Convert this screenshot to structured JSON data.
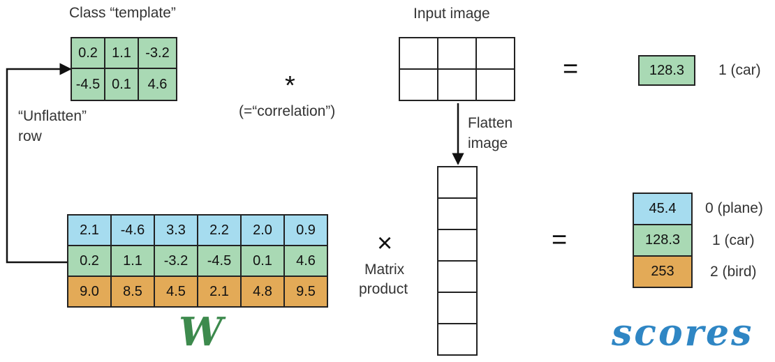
{
  "colors": {
    "blue": "#a6dcef",
    "green": "#a9d9b4",
    "orange": "#e3aa57",
    "w_label": "#3d8a4d",
    "scores_label": "#2f86c4"
  },
  "template_section": {
    "title": "Class “template”",
    "rows": [
      [
        "0.2",
        "1.1",
        "-3.2"
      ],
      [
        "-4.5",
        "0.1",
        "4.6"
      ]
    ]
  },
  "unflatten": {
    "line1": "“Unflatten”",
    "line2": "row"
  },
  "correlation": {
    "symbol": "*",
    "text": "(=“correlation”)"
  },
  "input_image": {
    "title": "Input image"
  },
  "flatten": {
    "line1": "Flatten",
    "line2": "image"
  },
  "top_result": {
    "equals": "=",
    "score": "128.3",
    "label": "1 (car)"
  },
  "weights": {
    "rows": [
      {
        "color": "blue",
        "values": [
          "2.1",
          "-4.6",
          "3.3",
          "2.2",
          "2.0",
          "0.9"
        ]
      },
      {
        "color": "green",
        "values": [
          "0.2",
          "1.1",
          "-3.2",
          "-4.5",
          "0.1",
          "4.6"
        ]
      },
      {
        "color": "orange",
        "values": [
          "9.0",
          "8.5",
          "4.5",
          "2.1",
          "4.8",
          "9.5"
        ]
      }
    ],
    "symbol": "W"
  },
  "matrix_product": {
    "symbol": "×",
    "line1": "Matrix",
    "line2": "product"
  },
  "scores": {
    "equals": "=",
    "items": [
      {
        "value": "45.4",
        "label": "0 (plane)",
        "color": "blue"
      },
      {
        "value": "128.3",
        "label": "1 (car)",
        "color": "green"
      },
      {
        "value": "253",
        "label": "2 (bird)",
        "color": "orange"
      }
    ],
    "symbol": "scores"
  }
}
